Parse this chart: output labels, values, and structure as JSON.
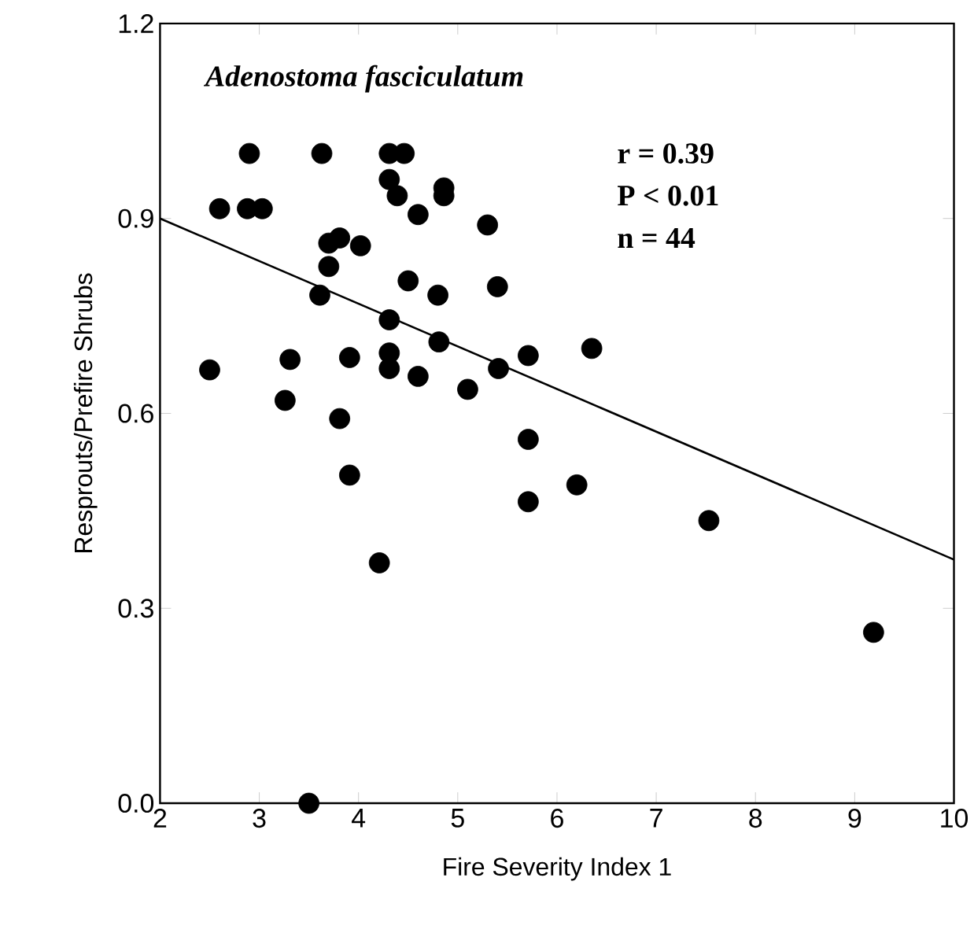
{
  "chart_data": {
    "type": "scatter",
    "title": "Adenostoma fasciculatum",
    "xlabel": "Fire Severity Index 1",
    "ylabel": "Resprouts/Prefire Shrubs",
    "annotations": [
      "r = 0.39",
      "P < 0.01",
      "n = 44"
    ],
    "xlim": [
      2,
      10
    ],
    "xticks": [
      2,
      3,
      4,
      5,
      6,
      7,
      8,
      9,
      10
    ],
    "ylim": [
      0,
      1.2
    ],
    "yticks": [
      {
        "value": 0,
        "label": "0.0"
      },
      {
        "value": 0.3,
        "label": "0.3"
      },
      {
        "value": 0.6,
        "label": "0.6"
      },
      {
        "value": 0.9,
        "label": "0.9"
      },
      {
        "value": 1.2,
        "label": "1.2"
      }
    ],
    "grid": false,
    "marker": "circle",
    "series": [
      {
        "color": "#000000",
        "x": [
          2.9,
          3.63,
          4.31,
          4.46,
          2.6,
          2.88,
          3.03,
          4.31,
          4.39,
          4.86,
          4.86,
          4.6,
          5.3,
          3.81,
          3.7,
          4.02,
          3.7,
          3.61,
          4.5,
          4.8,
          5.4,
          4.31,
          4.81,
          5.41,
          5.71,
          2.5,
          3.31,
          3.91,
          4.31,
          4.31,
          4.6,
          5.1,
          3.26,
          3.81,
          5.71,
          3.91,
          5.71,
          4.21,
          3.5,
          6.35,
          6.2,
          7.53,
          9.19
        ],
        "values": [
          1.0,
          1.0,
          1.0,
          1.0,
          0.915,
          0.915,
          0.915,
          0.96,
          0.935,
          0.947,
          0.935,
          0.906,
          0.89,
          0.87,
          0.862,
          0.858,
          0.826,
          0.782,
          0.804,
          0.782,
          0.795,
          0.744,
          0.71,
          0.669,
          0.689,
          0.667,
          0.683,
          0.686,
          0.693,
          0.669,
          0.657,
          0.637,
          0.62,
          0.592,
          0.56,
          0.505,
          0.464,
          0.37,
          0.0,
          0.7,
          0.49,
          0.435,
          0.263
        ]
      },
      {
        "type": "line",
        "color": "#000000",
        "marker": "none",
        "line_style": "solid",
        "x": [
          2,
          10
        ],
        "values": [
          0.9,
          0.375
        ]
      }
    ]
  }
}
